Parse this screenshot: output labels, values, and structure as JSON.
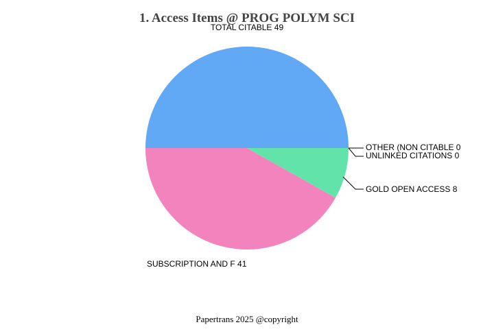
{
  "chart_data": {
    "type": "pie",
    "title": "1. Access Items @ PROG POLYM SCI",
    "slices": [
      {
        "label": "TOTAL CITABLE",
        "value": 49,
        "color": "#61a8f5"
      },
      {
        "label": "OTHER (NON CITABLE",
        "value": 0,
        "color": "#9b9bf0"
      },
      {
        "label": "UNLINKED CITATIONS",
        "value": 0,
        "color": "#f5c36a"
      },
      {
        "label": "GOLD OPEN ACCESS",
        "value": 8,
        "color": "#62e3a9"
      },
      {
        "label": "SUBSCRIPTION AND F",
        "value": 41,
        "color": "#f383bd"
      }
    ]
  },
  "footer": "Papertrans 2025 @copyright"
}
